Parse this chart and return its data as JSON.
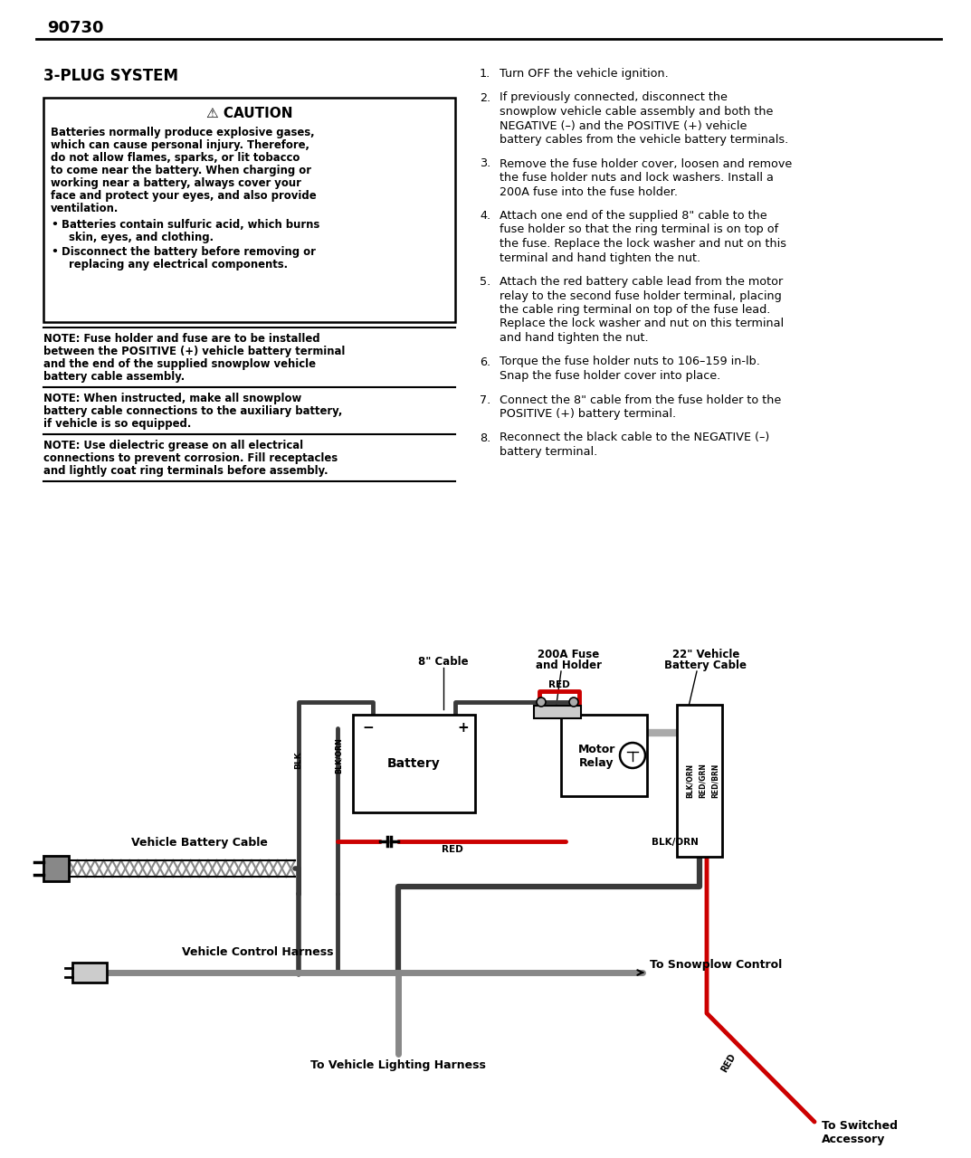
{
  "page_number": "90730",
  "section_title": "3-PLUG SYSTEM",
  "caution_title": "⚠ CAUTION",
  "caution_body_lines": [
    "Batteries normally produce explosive gases,",
    "which can cause personal injury. Therefore,",
    "do not allow flames, sparks, or lit tobacco",
    "to come near the battery. When charging or",
    "working near a battery, always cover your",
    "face and protect your eyes, and also provide",
    "ventilation."
  ],
  "caution_bullets": [
    [
      "Batteries contain sulfuric acid, which burns",
      "  skin, eyes, and clothing."
    ],
    [
      "Disconnect the battery before removing or",
      "  replacing any electrical components."
    ]
  ],
  "notes": [
    [
      "NOTE: Fuse holder and fuse are to be installed",
      "between the POSITIVE (+) vehicle battery terminal",
      "and the end of the supplied snowplow vehicle",
      "battery cable assembly."
    ],
    [
      "NOTE: When instructed, make all snowplow",
      "battery cable connections to the auxiliary battery,",
      "if vehicle is so equipped."
    ],
    [
      "NOTE: Use dielectric grease on all electrical",
      "connections to prevent corrosion. Fill receptacles",
      "and lightly coat ring terminals before assembly."
    ]
  ],
  "steps": [
    [
      "Turn OFF the vehicle ignition."
    ],
    [
      "If previously connected, disconnect the",
      "snowplow vehicle cable assembly and both the",
      "NEGATIVE (–) and the POSITIVE (+) vehicle",
      "battery cables from the vehicle battery terminals."
    ],
    [
      "Remove the fuse holder cover, loosen and remove",
      "the fuse holder nuts and lock washers. Install a",
      "200A fuse into the fuse holder."
    ],
    [
      "Attach one end of the supplied 8\" cable to the",
      "fuse holder so that the ring terminal is on top of",
      "the fuse. Replace the lock washer and nut on this",
      "terminal and hand tighten the nut."
    ],
    [
      "Attach the red battery cable lead from the motor",
      "relay to the second fuse holder terminal, placing",
      "the cable ring terminal on top of the fuse lead.",
      "Replace the lock washer and nut on this terminal",
      "and hand tighten the nut."
    ],
    [
      "Torque the fuse holder nuts to 106–159 in-lb.",
      "Snap the fuse holder cover into place."
    ],
    [
      "Connect the 8\" cable from the fuse holder to the",
      "POSITIVE (+) battery terminal."
    ],
    [
      "Reconnect the black cable to the NEGATIVE (–)",
      "battery terminal."
    ]
  ],
  "bg_color": "#ffffff",
  "text_color": "#000000",
  "wire_dark": "#3a3a3a",
  "wire_gray": "#888888",
  "wire_red": "#cc0000"
}
